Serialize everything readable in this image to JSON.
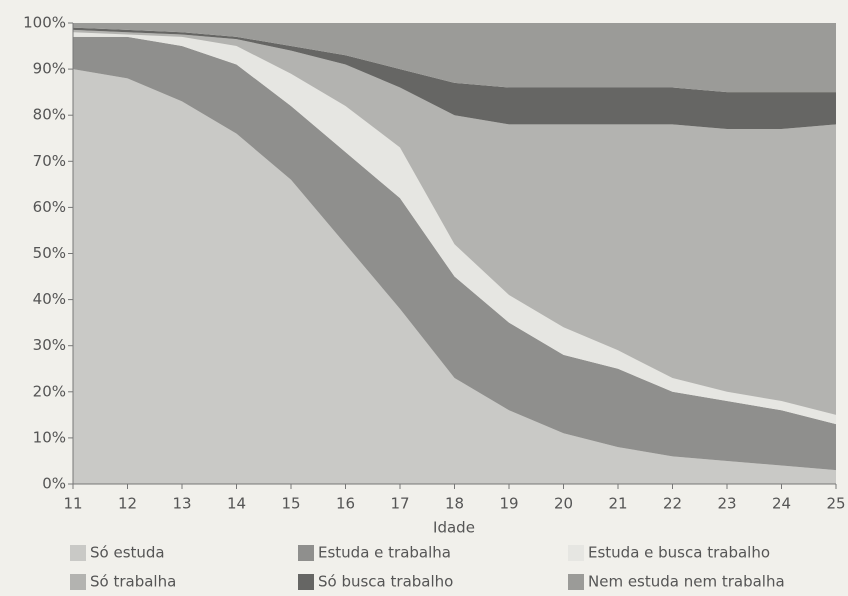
{
  "chart_data": {
    "type": "stacked_area",
    "x_label": "Idade",
    "x": [
      11,
      12,
      13,
      14,
      15,
      16,
      17,
      18,
      19,
      20,
      21,
      22,
      23,
      24,
      25
    ],
    "xlim": [
      11,
      25
    ],
    "xticks": [
      11,
      12,
      13,
      14,
      15,
      16,
      17,
      18,
      19,
      20,
      21,
      22,
      23,
      24,
      25
    ],
    "ylim": [
      0,
      100
    ],
    "yticks": [
      {
        "value": 0,
        "label": "0%"
      },
      {
        "value": 10,
        "label": "10%"
      },
      {
        "value": 20,
        "label": "20%"
      },
      {
        "value": 30,
        "label": "30%"
      },
      {
        "value": 40,
        "label": "40%"
      },
      {
        "value": 50,
        "label": "50%"
      },
      {
        "value": 60,
        "label": "60%"
      },
      {
        "value": 70,
        "label": "70%"
      },
      {
        "value": 80,
        "label": "80%"
      },
      {
        "value": 90,
        "label": "90%"
      },
      {
        "value": 100,
        "label": "100%"
      }
    ],
    "legend": "bottom",
    "series": [
      {
        "name": "Só estuda",
        "color": "#c9c9c6",
        "values": [
          90,
          88,
          83,
          76,
          66,
          52,
          38,
          23,
          16,
          11,
          8,
          6,
          5,
          4,
          3
        ]
      },
      {
        "name": "Estuda e trabalha",
        "color": "#8f8f8d",
        "values": [
          7,
          9,
          12,
          15,
          16,
          20,
          24,
          22,
          19,
          17,
          17,
          14,
          13,
          12,
          10
        ]
      },
      {
        "name": "Estuda e busca trabalho",
        "color": "#e6e6e2",
        "values": [
          1,
          0.5,
          2,
          4,
          7,
          10,
          11,
          7,
          6,
          6,
          4,
          3,
          2,
          2,
          2
        ]
      },
      {
        "name": "Só trabalha",
        "color": "#b3b3b0",
        "values": [
          0.5,
          0.5,
          0.5,
          1.5,
          5,
          9,
          13,
          28,
          37,
          44,
          49,
          55,
          57,
          59,
          63
        ]
      },
      {
        "name": "Só busca trabalho",
        "color": "#666664",
        "values": [
          0.5,
          0.5,
          0.5,
          0.5,
          1,
          2,
          4,
          7,
          8,
          8,
          8,
          8,
          8,
          8,
          7
        ]
      },
      {
        "name": "Nem estuda nem trabalha",
        "color": "#9b9b98",
        "values": [
          1,
          1.5,
          2,
          3,
          5,
          7,
          10,
          13,
          14,
          14,
          14,
          14,
          15,
          15,
          15
        ]
      }
    ]
  }
}
